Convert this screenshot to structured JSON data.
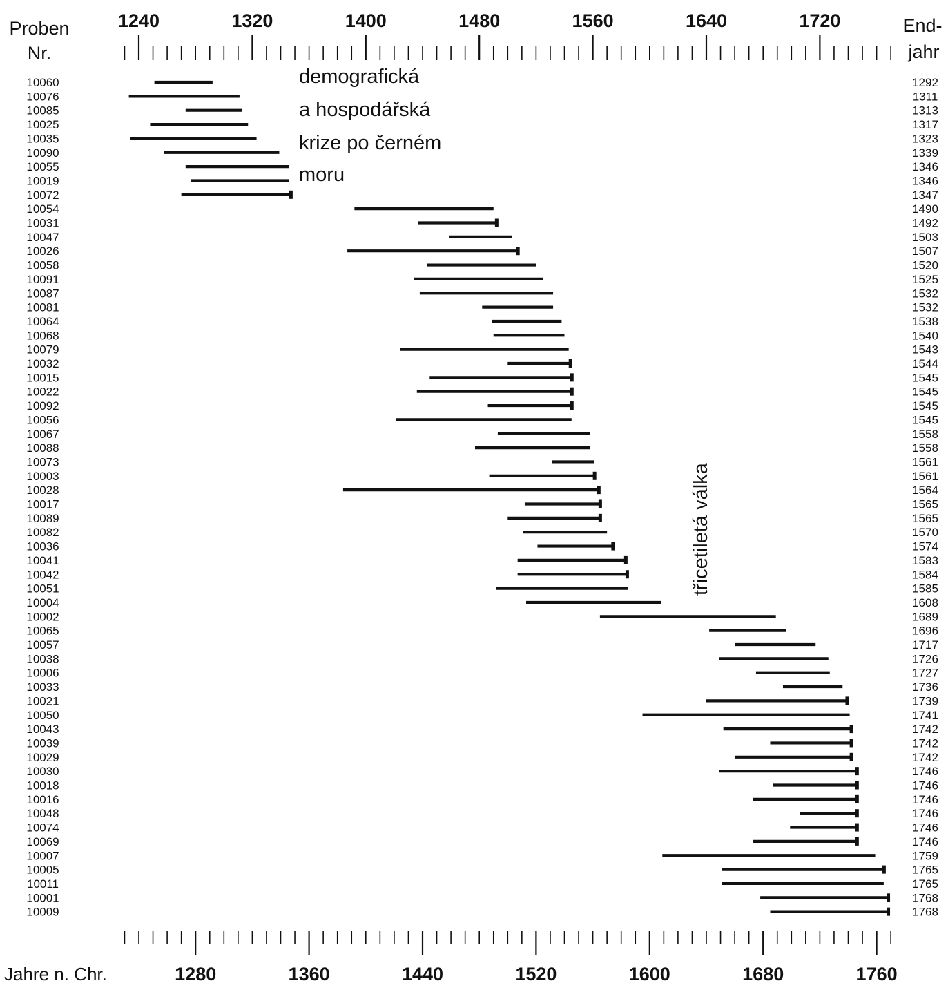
{
  "chart_data": {
    "type": "bar",
    "subtype": "timeline-range",
    "left_header": [
      "Proben",
      "Nr."
    ],
    "right_header": [
      "End-",
      "jahr"
    ],
    "xlabel": "Jahre n. Chr.",
    "top_ticks": [
      "1240",
      "1320",
      "1400",
      "1480",
      "1560",
      "1640",
      "1720"
    ],
    "bottom_ticks": [
      "1280",
      "1360",
      "1440",
      "1520",
      "1600",
      "1680",
      "1760"
    ],
    "xlim": [
      1215,
      1785
    ],
    "annotations": [
      {
        "lines": [
          "demografická",
          "a hospodářská",
          "krize po černém",
          "moru"
        ]
      },
      {
        "lines": [
          "třicetiletá válka"
        ],
        "orientation": "vertical"
      }
    ],
    "samples": [
      {
        "id": "10060",
        "start": 1251,
        "end": 1292,
        "bark": false
      },
      {
        "id": "10076",
        "start": 1233,
        "end": 1311,
        "bark": false
      },
      {
        "id": "10085",
        "start": 1273,
        "end": 1313,
        "bark": false
      },
      {
        "id": "10025",
        "start": 1248,
        "end": 1317,
        "bark": false
      },
      {
        "id": "10035",
        "start": 1234,
        "end": 1323,
        "bark": false
      },
      {
        "id": "10090",
        "start": 1258,
        "end": 1339,
        "bark": false
      },
      {
        "id": "10055",
        "start": 1273,
        "end": 1346,
        "bark": false
      },
      {
        "id": "10019",
        "start": 1277,
        "end": 1346,
        "bark": false
      },
      {
        "id": "10072",
        "start": 1270,
        "end": 1347,
        "bark": true
      },
      {
        "id": "10054",
        "start": 1392,
        "end": 1490,
        "bark": false
      },
      {
        "id": "10031",
        "start": 1437,
        "end": 1492,
        "bark": true
      },
      {
        "id": "10047",
        "start": 1459,
        "end": 1503,
        "bark": false
      },
      {
        "id": "10026",
        "start": 1387,
        "end": 1507,
        "bark": true
      },
      {
        "id": "10058",
        "start": 1443,
        "end": 1520,
        "bark": false
      },
      {
        "id": "10091",
        "start": 1434,
        "end": 1525,
        "bark": false
      },
      {
        "id": "10087",
        "start": 1438,
        "end": 1532,
        "bark": false
      },
      {
        "id": "10081",
        "start": 1482,
        "end": 1532,
        "bark": false
      },
      {
        "id": "10064",
        "start": 1489,
        "end": 1538,
        "bark": false
      },
      {
        "id": "10068",
        "start": 1490,
        "end": 1540,
        "bark": false
      },
      {
        "id": "10079",
        "start": 1424,
        "end": 1543,
        "bark": false
      },
      {
        "id": "10032",
        "start": 1500,
        "end": 1544,
        "bark": true
      },
      {
        "id": "10015",
        "start": 1445,
        "end": 1545,
        "bark": true
      },
      {
        "id": "10022",
        "start": 1436,
        "end": 1545,
        "bark": true
      },
      {
        "id": "10092",
        "start": 1486,
        "end": 1545,
        "bark": true
      },
      {
        "id": "10056",
        "start": 1421,
        "end": 1545,
        "bark": false
      },
      {
        "id": "10067",
        "start": 1493,
        "end": 1558,
        "bark": false
      },
      {
        "id": "10088",
        "start": 1477,
        "end": 1558,
        "bark": false
      },
      {
        "id": "10073",
        "start": 1531,
        "end": 1561,
        "bark": false
      },
      {
        "id": "10003",
        "start": 1487,
        "end": 1561,
        "bark": true
      },
      {
        "id": "10028",
        "start": 1384,
        "end": 1564,
        "bark": true
      },
      {
        "id": "10017",
        "start": 1512,
        "end": 1565,
        "bark": true
      },
      {
        "id": "10089",
        "start": 1500,
        "end": 1565,
        "bark": true
      },
      {
        "id": "10082",
        "start": 1511,
        "end": 1570,
        "bark": false
      },
      {
        "id": "10036",
        "start": 1521,
        "end": 1574,
        "bark": true
      },
      {
        "id": "10041",
        "start": 1507,
        "end": 1583,
        "bark": true
      },
      {
        "id": "10042",
        "start": 1507,
        "end": 1584,
        "bark": true
      },
      {
        "id": "10051",
        "start": 1492,
        "end": 1585,
        "bark": false
      },
      {
        "id": "10004",
        "start": 1513,
        "end": 1608,
        "bark": false
      },
      {
        "id": "10002",
        "start": 1565,
        "end": 1689,
        "bark": false
      },
      {
        "id": "10065",
        "start": 1642,
        "end": 1696,
        "bark": false
      },
      {
        "id": "10057",
        "start": 1660,
        "end": 1717,
        "bark": false
      },
      {
        "id": "10038",
        "start": 1649,
        "end": 1726,
        "bark": false
      },
      {
        "id": "10006",
        "start": 1675,
        "end": 1727,
        "bark": false
      },
      {
        "id": "10033",
        "start": 1694,
        "end": 1736,
        "bark": false
      },
      {
        "id": "10021",
        "start": 1640,
        "end": 1739,
        "bark": true
      },
      {
        "id": "10050",
        "start": 1595,
        "end": 1741,
        "bark": false
      },
      {
        "id": "10043",
        "start": 1652,
        "end": 1742,
        "bark": true
      },
      {
        "id": "10039",
        "start": 1685,
        "end": 1742,
        "bark": true
      },
      {
        "id": "10029",
        "start": 1660,
        "end": 1742,
        "bark": true
      },
      {
        "id": "10030",
        "start": 1649,
        "end": 1746,
        "bark": true
      },
      {
        "id": "10018",
        "start": 1687,
        "end": 1746,
        "bark": true
      },
      {
        "id": "10016",
        "start": 1673,
        "end": 1746,
        "bark": true
      },
      {
        "id": "10048",
        "start": 1706,
        "end": 1746,
        "bark": true
      },
      {
        "id": "10074",
        "start": 1699,
        "end": 1746,
        "bark": true
      },
      {
        "id": "10069",
        "start": 1673,
        "end": 1746,
        "bark": true
      },
      {
        "id": "10007",
        "start": 1609,
        "end": 1759,
        "bark": false
      },
      {
        "id": "10005",
        "start": 1651,
        "end": 1765,
        "bark": true
      },
      {
        "id": "10011",
        "start": 1651,
        "end": 1765,
        "bark": false
      },
      {
        "id": "10001",
        "start": 1678,
        "end": 1768,
        "bark": true
      },
      {
        "id": "10009",
        "start": 1685,
        "end": 1768,
        "bark": true
      }
    ],
    "end_years": [
      "1292",
      "1311",
      "1313",
      "1317",
      "1323",
      "1339",
      "1346",
      "1346",
      "1347",
      "1490",
      "1492",
      "1503",
      "1507",
      "1520",
      "1525",
      "1532",
      "1532",
      "1538",
      "1540",
      "1543",
      "1544",
      "1545",
      "1545",
      "1545",
      "1545",
      "1558",
      "1558",
      "1561",
      "1561",
      "1564",
      "1565",
      "1565",
      "1570",
      "1574",
      "1583",
      "1584",
      "1585",
      "1608",
      "1689",
      "1696",
      "1717",
      "1726",
      "1727",
      "1736",
      "1739",
      "1741",
      "1742",
      "1742",
      "1742",
      "1746",
      "1746",
      "1746",
      "1746",
      "1746",
      "1746",
      "1759",
      "1765",
      "1765",
      "1768",
      "1768"
    ],
    "colors": {
      "bar": "#111111",
      "background": "#ffffff"
    }
  }
}
